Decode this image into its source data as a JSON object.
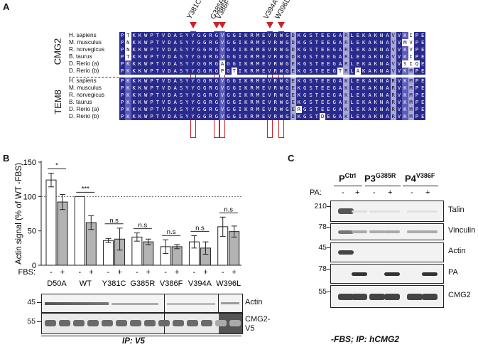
{
  "panel_a": {
    "label": "A",
    "mutations": [
      "Y381C",
      "G385R",
      "V386F",
      "V394A",
      "W396L"
    ],
    "groups": [
      {
        "name": "CMG2",
        "species": [
          "H. sapiens",
          "M. musculus",
          "R. norvegicus",
          "B. taurus",
          "D. Rerio (a)",
          "D. Rerio (b)"
        ],
        "sequences": [
          "PTKKWPTVDASYYGGRGVGGIKRMEVRWGDKGSTEEGARLEKAKNAVVKIPE",
          "PNKKWPTVDASYYGGRGVGGIKRMEVRWGDKGSTEEGARLEKAKNAVVMVPE",
          "PNKKWPTVDASYYGGRGVGGIKRMEVRWGDKGSTEEGARLEKAKNAVVKVPE",
          "PTKKWPTVDASYYGGRGVGGIKRMEVRWGDKGSTEEGARLEKAKNAVVKIPE",
          "PKKKWPTVDASYYGGRGAGGIKRMEVRWGEKGSTEEGARLEKAKNAVVSIQE",
          "PKKKWPTVDASYYGGRGPGTIKRMEVRWGEKGSTEEGTRLAKAKNAVVKMPE"
        ]
      },
      {
        "name": "TEM8",
        "species": [
          "H. sapiens",
          "M. musculus",
          "R. norvegicus",
          "B. taurus",
          "D. Rerio (a)",
          "D. Rerio (b)"
        ],
        "sequences": [
          "PKKKWPTVDASYYGGRGVGGIKRMEVRWGEKGSTEEGAKLEKAKNARVKMPE",
          "PKKKWPTVDASYYGGRGVGGIKRMEVRWGEKGSTEEGAKLEKAKNARVKMPE",
          "PKKKWPTVDASYYGGRGVGGIKRMEVRWGEKGSTEEGAKLEKAKNARVKMPE",
          "PKKKWPTVDASYYGGRGVGGIKRMEVRWGEKGSTEEGAKLEKAKNARVKMPE",
          "PKKKWPTVDASYYGGRGVGGIKRMEVRWGERGSTEEGAKLEKAKNARVKMPE",
          "PKKKWPTVDASYYGGRGVGGIKRMEVRWGDKGSTDEGAKLEKAKNARVKMPE"
        ]
      }
    ]
  },
  "panel_b": {
    "label": "B",
    "ylabel": "Actin signal (% of WT -FBS)",
    "yticks": [
      "0",
      "50",
      "100",
      "150"
    ],
    "fbs_label": "FBS:",
    "minus": "-",
    "plus": "+",
    "sig_labels": [
      "*",
      "***",
      "n.s",
      "n.s",
      "n.s",
      "n.s",
      "n.s"
    ],
    "blot_labels": [
      "Actin",
      "CMG2-\nV5"
    ],
    "mw": [
      "45",
      "55"
    ],
    "ip_label": "IP: V5"
  },
  "chart_data": {
    "type": "bar",
    "categories": [
      "D50A",
      "WT",
      "Y381C",
      "G385R",
      "V386F",
      "V394A",
      "W396L"
    ],
    "series": [
      {
        "values": [
          124,
          100,
          36,
          41,
          27,
          34,
          56
        ],
        "errors": [
          10,
          0,
          3,
          6,
          10,
          9,
          14
        ]
      },
      {
        "values": [
          92,
          62,
          38,
          34,
          27,
          25,
          49
        ],
        "errors": [
          11,
          10,
          16,
          4,
          3,
          9,
          8
        ]
      }
    ],
    "ylim": [
      0,
      150
    ],
    "reference_line": 100,
    "colors": [
      "#ffffff",
      "#b3b3b3"
    ]
  },
  "panel_c": {
    "label": "C",
    "headers": [
      {
        "main": "P",
        "sup": "Ctrl"
      },
      {
        "main": "P3",
        "sup": "G385R"
      },
      {
        "main": "P4",
        "sup": "V386F"
      }
    ],
    "pa_label": "PA:",
    "minus": "-",
    "plus": "+",
    "rows": [
      {
        "mw": "210",
        "name": "Talin"
      },
      {
        "mw": "78",
        "name": "Vinculin"
      },
      {
        "mw": "45",
        "name": "Actin"
      },
      {
        "mw": "78",
        "name": "PA"
      },
      {
        "mw": "55",
        "name": "CMG2"
      }
    ],
    "footer": "-FBS; IP: hCMG2"
  }
}
